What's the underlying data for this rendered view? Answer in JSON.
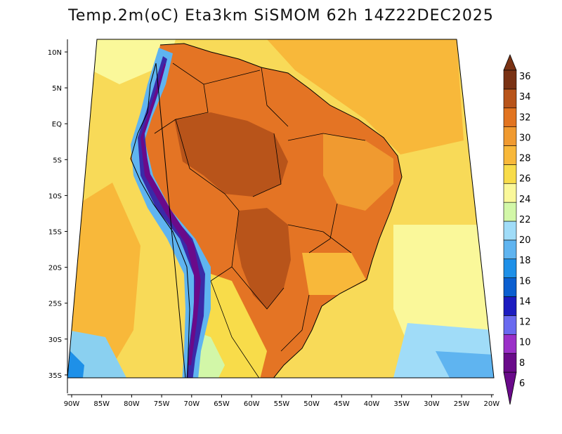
{
  "title": "Temp.2m(oC) Eta3km SiSMOM 62h 14Z22DEC2025",
  "lat_labels": [
    "10N",
    "5N",
    "EQ",
    "5S",
    "10S",
    "15S",
    "20S",
    "25S",
    "30S",
    "35S"
  ],
  "lon_labels": [
    "90W",
    "85W",
    "80W",
    "75W",
    "70W",
    "65W",
    "60W",
    "55W",
    "50W",
    "45W",
    "40W",
    "35W",
    "30W",
    "25W",
    "20W"
  ],
  "colorbar": {
    "labels": [
      "6",
      "8",
      "10",
      "12",
      "14",
      "16",
      "18",
      "20",
      "22",
      "24",
      "26",
      "28",
      "30",
      "32",
      "34",
      "36"
    ],
    "colors": [
      "#6a0a8a",
      "#9b30c8",
      "#6a6af0",
      "#1c1cc0",
      "#0b5fd0",
      "#1e90e8",
      "#5fb4f0",
      "#a0dcf8",
      "#d2f7a8",
      "#faf89a",
      "#f8dc4a",
      "#f8b83a",
      "#f09a30",
      "#e27420",
      "#b8541a",
      "#7a3214"
    ]
  },
  "colors": {
    "ocean": "#f8da58",
    "land_hot": "#e47424",
    "land_core": "#b8541a",
    "andes": "#3a2aa8",
    "south_cool": "#8ad0f0"
  }
}
